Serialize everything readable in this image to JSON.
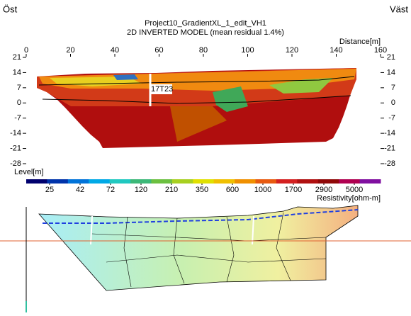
{
  "chart_data": {
    "type": "section",
    "left_label": "Öst",
    "right_label": "Väst",
    "title": "Project10_GradientXL_1_edit_VH1",
    "subtitle": "2D INVERTED MODEL (mean residual 1.4%)",
    "x_label": "Distance[m]",
    "y_label": "Level[m]",
    "marker_label": "17T23",
    "colorbar_label": "Resistivity[ohm-m]",
    "xlim": [
      0,
      160
    ],
    "xticks": [
      0,
      20,
      40,
      60,
      80,
      100,
      120,
      140,
      160
    ],
    "ylim": [
      -28,
      21
    ],
    "yticks": [
      21,
      14,
      7,
      0,
      -7,
      -14,
      -21,
      -28
    ],
    "colorbar_ticks": [
      25,
      42,
      72,
      120,
      210,
      350,
      600,
      1000,
      1700,
      2900,
      5000
    ],
    "colorbar_colors": [
      "#00006e",
      "#0033aa",
      "#0073d9",
      "#00a9e6",
      "#20c8c0",
      "#3cb878",
      "#6cc040",
      "#a8d020",
      "#e0e000",
      "#f0c000",
      "#f09000",
      "#e85a10",
      "#d42020",
      "#b01010",
      "#900808",
      "#b00050",
      "#8010a0"
    ]
  }
}
